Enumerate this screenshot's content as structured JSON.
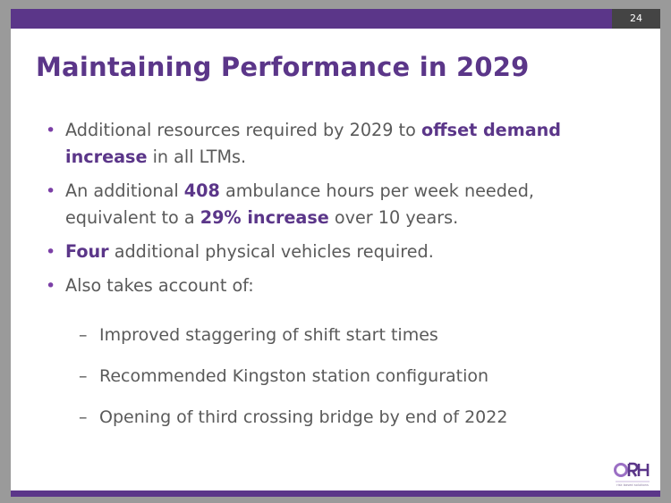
{
  "slide": {
    "page_number": "24",
    "title": "Maintaining Performance in 2029"
  },
  "bullets": [
    {
      "parts": [
        "Additional resources required by 2029 to ",
        "offset demand increase",
        " in all LTMs."
      ]
    },
    {
      "parts": [
        "An additional ",
        "408",
        " ambulance hours per week needed, equivalent to a ",
        "29% increase",
        " over 10 years."
      ]
    },
    {
      "parts": [
        "Four",
        " additional physical vehicles required."
      ]
    },
    {
      "parts": [
        "Also takes account of:"
      ]
    }
  ],
  "sub_bullets": [
    "Improved staggering of shift start times",
    "Recommended Kingston station configuration",
    "Opening of third crossing bridge by end of 2022"
  ],
  "logo": {
    "text": "ORH",
    "tagline": "risk based solutions"
  },
  "colors": {
    "accent": "#5b3689",
    "text": "#5a5a5a",
    "bullet": "#7b3fa6"
  },
  "icons": {
    "bullet": "bullet-dot-icon",
    "dash": "dash-icon"
  }
}
